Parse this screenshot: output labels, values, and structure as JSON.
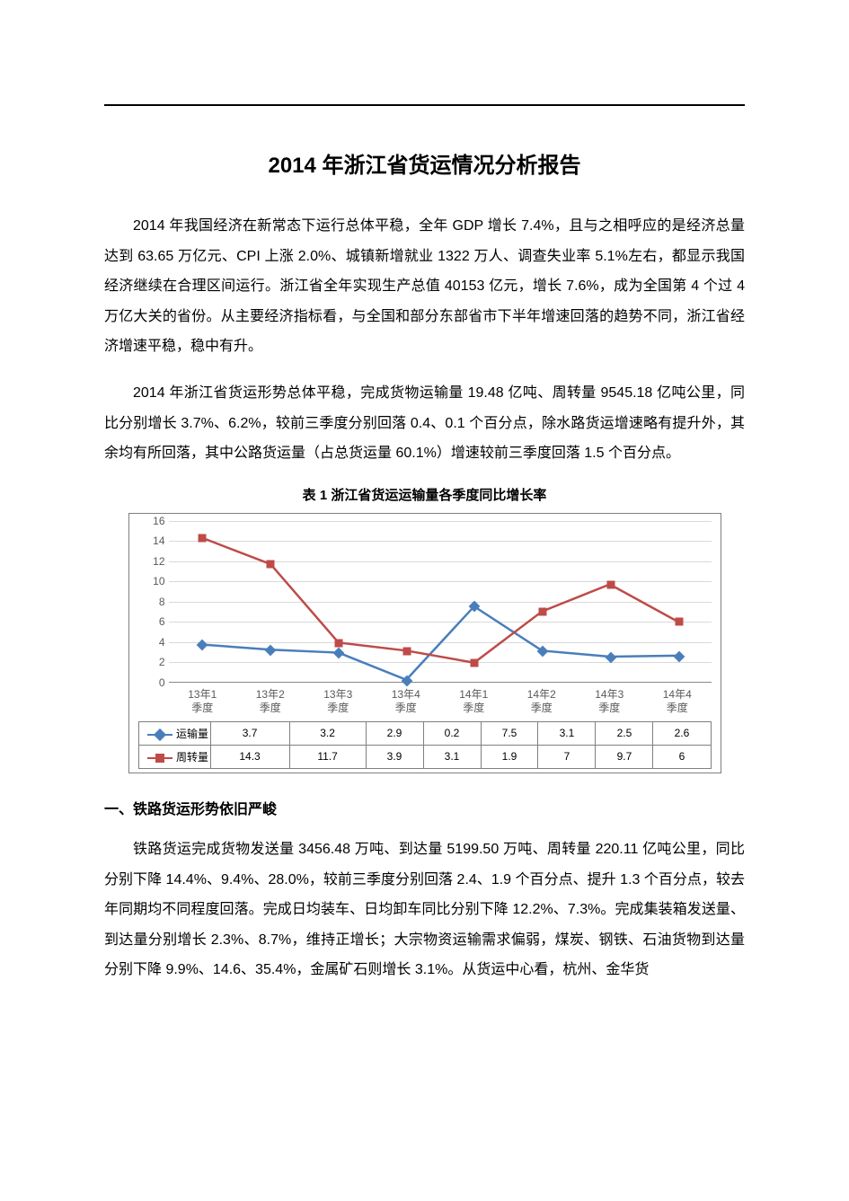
{
  "title": "2014 年浙江省货运情况分析报告",
  "paragraphs": {
    "p1": "2014 年我国经济在新常态下运行总体平稳，全年 GDP 增长 7.4%，且与之相呼应的是经济总量达到 63.65 万亿元、CPI 上涨 2.0%、城镇新增就业 1322 万人、调查失业率 5.1%左右，都显示我国经济继续在合理区间运行。浙江省全年实现生产总值 40153 亿元，增长 7.6%，成为全国第 4 个过 4 万亿大关的省份。从主要经济指标看，与全国和部分东部省市下半年增速回落的趋势不同，浙江省经济增速平稳，稳中有升。",
    "p2": "2014 年浙江省货运形势总体平稳，完成货物运输量 19.48 亿吨、周转量 9545.18 亿吨公里，同比分别增长 3.7%、6.2%，较前三季度分别回落 0.4、0.1 个百分点，除水路货运增速略有提升外，其余均有所回落，其中公路货运量（占总货运量 60.1%）增速较前三季度回落 1.5 个百分点。",
    "p3": "铁路货运完成货物发送量 3456.48 万吨、到达量 5199.50 万吨、周转量 220.11 亿吨公里，同比分别下降 14.4%、9.4%、28.0%，较前三季度分别回落 2.4、1.9 个百分点、提升 1.3 个百分点，较去年同期均不同程度回落。完成日均装车、日均卸车同比分别下降 12.2%、7.3%。完成集装箱发送量、到达量分别增长 2.3%、8.7%，维持正增长；大宗物资运输需求偏弱，煤炭、钢铁、石油货物到达量分别下降 9.9%、14.6、35.4%，金属矿石则增长 3.1%。从货运中心看，杭州、金华货"
  },
  "section1_heading": "一、铁路货运形势依旧严峻",
  "chart": {
    "caption": "表 1  浙江省货运运输量各季度同比增长率",
    "type": "line",
    "categories": [
      "13年1",
      "13年2",
      "13年3",
      "13年4",
      "14年1",
      "14年2",
      "14年3",
      "14年4"
    ],
    "category_line2": "季度",
    "series": [
      {
        "name": "运输量",
        "color": "#4a7ebb",
        "marker": "diamond",
        "values": [
          3.7,
          3.2,
          2.9,
          0.2,
          7.5,
          3.1,
          2.5,
          2.6
        ]
      },
      {
        "name": "周转量",
        "color": "#be4b48",
        "marker": "square",
        "values": [
          14.3,
          11.7,
          3.9,
          3.1,
          1.9,
          7,
          9.7,
          6
        ]
      }
    ],
    "ylim": [
      0,
      16
    ],
    "ytick_step": 2,
    "yticks": [
      0,
      2,
      4,
      6,
      8,
      10,
      12,
      14,
      16
    ],
    "grid_color": "#d9d9d9",
    "axis_color": "#888888",
    "frame_color": "#7f7f7f",
    "background_color": "#ffffff",
    "line_width": 2.5,
    "marker_size": 9,
    "tick_fontsize": 12,
    "tick_color": "#595959",
    "caption_fontsize": 15
  }
}
